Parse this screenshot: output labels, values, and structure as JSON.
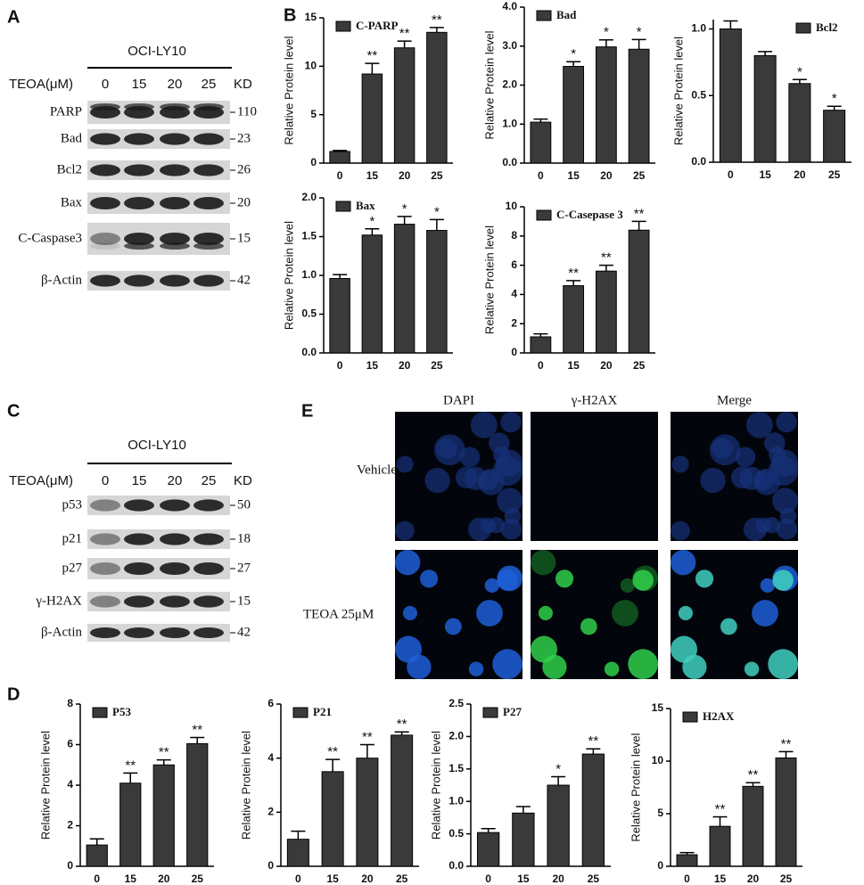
{
  "panel_labels": [
    "A",
    "B",
    "C",
    "D",
    "E"
  ],
  "blots": [
    {
      "cell_line": "OCI-LY10",
      "treatment_label": "TEOA(μM)",
      "lanes": [
        "0",
        "15",
        "20",
        "25"
      ],
      "unit_label": "KD",
      "rows": [
        {
          "protein": "PARP",
          "kd": "110"
        },
        {
          "protein": "Bad",
          "kd": "23"
        },
        {
          "protein": "Bcl2",
          "kd": "26"
        },
        {
          "protein": "Bax",
          "kd": "20"
        },
        {
          "protein": "C-Caspase3",
          "kd": "15"
        },
        {
          "protein": "β-Actin",
          "kd": "42"
        }
      ]
    },
    {
      "cell_line": "OCI-LY10",
      "treatment_label": "TEOA(μM)",
      "lanes": [
        "0",
        "15",
        "20",
        "25"
      ],
      "unit_label": "KD",
      "rows": [
        {
          "protein": "p53",
          "kd": "50"
        },
        {
          "protein": "p21",
          "kd": "18"
        },
        {
          "protein": "p27",
          "kd": "27"
        },
        {
          "protein": "γ-H2AX",
          "kd": "15"
        },
        {
          "protein": "β-Actin",
          "kd": "42"
        }
      ]
    }
  ],
  "imaging": {
    "columns": [
      "DAPI",
      "γ-H2AX",
      "Merge"
    ],
    "rows": [
      "Vehicle",
      "TEOA 25μM"
    ]
  },
  "chart_data": [
    {
      "type": "bar",
      "ylabel": "Relative Protein level",
      "categories": [
        "0",
        "15",
        "20",
        "25"
      ],
      "legend": "upper left",
      "ylim": [
        0,
        15
      ],
      "yticks": [
        0,
        5,
        10,
        15
      ],
      "series": [
        {
          "name": "C-PARP",
          "color": "#3a3a3a",
          "values": [
            1.2,
            9.2,
            11.9,
            13.5
          ],
          "errors": [
            0.1,
            1.1,
            0.7,
            0.5
          ]
        }
      ],
      "annotations": [
        null,
        "**",
        "**",
        "**"
      ]
    },
    {
      "type": "bar",
      "ylabel": "Relative Protein level",
      "categories": [
        "0",
        "15",
        "20",
        "25"
      ],
      "legend": "upper left",
      "ylim": [
        0,
        4
      ],
      "yticks": [
        {
          "value": 0,
          "label": "0.0"
        },
        {
          "value": 1,
          "label": "1.0"
        },
        {
          "value": 2,
          "label": "2.0"
        },
        {
          "value": 3,
          "label": "3.0"
        },
        {
          "value": 4,
          "label": "4.0"
        }
      ],
      "series": [
        {
          "name": "Bad",
          "color": "#3a3a3a",
          "values": [
            1.05,
            2.48,
            2.98,
            2.92
          ],
          "errors": [
            0.08,
            0.12,
            0.18,
            0.25
          ]
        }
      ],
      "annotations": [
        null,
        "*",
        "*",
        "*"
      ]
    },
    {
      "type": "bar",
      "ylabel": "Relative Protein level",
      "categories": [
        "0",
        "15",
        "20",
        "25"
      ],
      "legend": "upper right",
      "ylim": [
        0,
        1.07
      ],
      "yticks": [
        {
          "value": 0,
          "label": "0.0"
        },
        0.5,
        {
          "value": 1,
          "label": "1.0"
        }
      ],
      "series": [
        {
          "name": "Bcl2",
          "color": "#3a3a3a",
          "values": [
            1.0,
            0.8,
            0.59,
            0.39
          ],
          "errors": [
            0.06,
            0.03,
            0.03,
            0.03
          ]
        }
      ],
      "annotations": [
        null,
        null,
        "*",
        "*"
      ]
    },
    {
      "type": "bar",
      "ylabel": "Relative Protein level",
      "categories": [
        "0",
        "15",
        "20",
        "25"
      ],
      "legend": "upper left",
      "ylim": [
        0,
        2
      ],
      "yticks": [
        {
          "value": 0,
          "label": "0.0"
        },
        0.5,
        {
          "value": 1,
          "label": "1.0"
        },
        1.5,
        {
          "value": 2,
          "label": "2.0"
        }
      ],
      "series": [
        {
          "name": "Bax",
          "color": "#3a3a3a",
          "values": [
            0.96,
            1.52,
            1.66,
            1.58
          ],
          "errors": [
            0.05,
            0.08,
            0.1,
            0.14
          ]
        }
      ],
      "annotations": [
        null,
        "*",
        "*",
        "*"
      ]
    },
    {
      "type": "bar",
      "ylabel": "Relative Protein level",
      "categories": [
        "0",
        "15",
        "20",
        "25"
      ],
      "legend": "upper left",
      "ylim": [
        0,
        10
      ],
      "yticks": [
        0,
        2,
        4,
        6,
        8,
        10
      ],
      "series": [
        {
          "name": "C-Casepase 3",
          "color": "#3a3a3a",
          "values": [
            1.1,
            4.6,
            5.6,
            8.4
          ],
          "errors": [
            0.2,
            0.35,
            0.4,
            0.6
          ]
        }
      ],
      "annotations": [
        null,
        "**",
        "**",
        "**"
      ]
    },
    {
      "type": "bar",
      "ylabel": "Relative Protein level",
      "categories": [
        "0",
        "15",
        "20",
        "25"
      ],
      "legend": "upper left",
      "ylim": [
        0,
        8
      ],
      "yticks": [
        0,
        2,
        4,
        6,
        8
      ],
      "series": [
        {
          "name": "P53",
          "color": "#3a3a3a",
          "values": [
            1.05,
            4.1,
            5.0,
            6.05
          ],
          "errors": [
            0.3,
            0.5,
            0.25,
            0.3
          ]
        }
      ],
      "annotations": [
        null,
        "**",
        "**",
        "**"
      ]
    },
    {
      "type": "bar",
      "ylabel": "Relative Protein level",
      "categories": [
        "0",
        "15",
        "20",
        "25"
      ],
      "legend": "upper left",
      "ylim": [
        0,
        6
      ],
      "yticks": [
        0,
        2,
        4,
        6
      ],
      "series": [
        {
          "name": "P21",
          "color": "#3a3a3a",
          "values": [
            1.0,
            3.5,
            4.0,
            4.85
          ],
          "errors": [
            0.3,
            0.45,
            0.5,
            0.12
          ]
        }
      ],
      "annotations": [
        null,
        "**",
        "**",
        "**"
      ]
    },
    {
      "type": "bar",
      "ylabel": "Relative Protein level",
      "categories": [
        "0",
        "15",
        "20",
        "25"
      ],
      "legend": "upper left",
      "ylim": [
        0,
        2.5
      ],
      "yticks": [
        {
          "value": 0,
          "label": "0.0"
        },
        0.5,
        {
          "value": 1,
          "label": "1.0"
        },
        1.5,
        {
          "value": 2,
          "label": "2.0"
        },
        2.5
      ],
      "series": [
        {
          "name": "P27",
          "color": "#3a3a3a",
          "values": [
            0.52,
            0.82,
            1.25,
            1.73
          ],
          "errors": [
            0.06,
            0.1,
            0.13,
            0.08
          ]
        }
      ],
      "annotations": [
        null,
        null,
        "*",
        "**"
      ]
    },
    {
      "type": "bar",
      "ylabel": "Relative Protein level",
      "categories": [
        "0",
        "15",
        "20",
        "25"
      ],
      "legend": "upper left",
      "ylim": [
        0,
        15
      ],
      "yticks": [
        0,
        5,
        10,
        15
      ],
      "series": [
        {
          "name": "H2AX",
          "color": "#3a3a3a",
          "values": [
            1.1,
            3.8,
            7.6,
            10.3
          ],
          "errors": [
            0.2,
            0.9,
            0.35,
            0.6
          ]
        }
      ],
      "annotations": [
        null,
        "**",
        "**",
        "**"
      ]
    }
  ]
}
